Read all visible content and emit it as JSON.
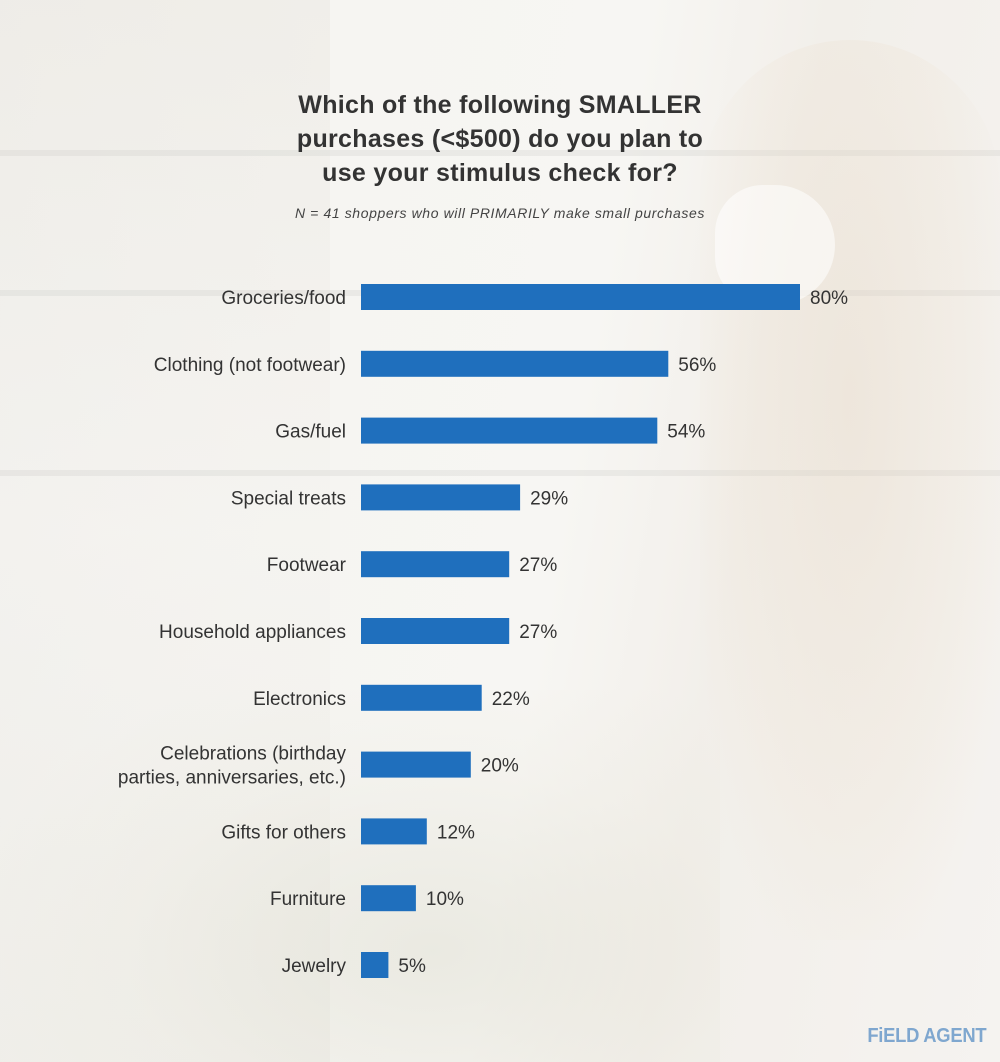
{
  "header": {
    "title_lines": [
      "Which of the following SMALLER",
      "purchases (<$500) do you plan to",
      "use your stimulus check for?"
    ],
    "subtitle": "N = 41 shoppers who will PRIMARILY make small purchases"
  },
  "brand": {
    "logo_text": "FiELD AGENT"
  },
  "colors": {
    "bar": "#1f6fbd",
    "text": "#333333",
    "logo": "#7fa7cf"
  },
  "chart_data": {
    "type": "bar",
    "orientation": "horizontal",
    "title": "Which of the following SMALLER purchases (<$500) do you plan to use your stimulus check for?",
    "subtitle": "N = 41 shoppers who will PRIMARILY make small purchases",
    "categories": [
      [
        "Groceries/food"
      ],
      [
        "Clothing (not footwear)"
      ],
      [
        "Gas/fuel"
      ],
      [
        "Special treats"
      ],
      [
        "Footwear"
      ],
      [
        "Household appliances"
      ],
      [
        "Electronics"
      ],
      [
        "Celebrations (birthday",
        "parties, anniversaries, etc.)"
      ],
      [
        "Gifts for others"
      ],
      [
        "Furniture"
      ],
      [
        "Jewelry"
      ]
    ],
    "values": [
      80,
      56,
      54,
      29,
      27,
      27,
      22,
      20,
      12,
      10,
      5
    ],
    "value_labels": [
      "80%",
      "56%",
      "54%",
      "29%",
      "27%",
      "27%",
      "22%",
      "20%",
      "12%",
      "10%",
      "5%"
    ],
    "unit": "%",
    "xlim": [
      0,
      80
    ],
    "grid": false,
    "legend": "none"
  }
}
